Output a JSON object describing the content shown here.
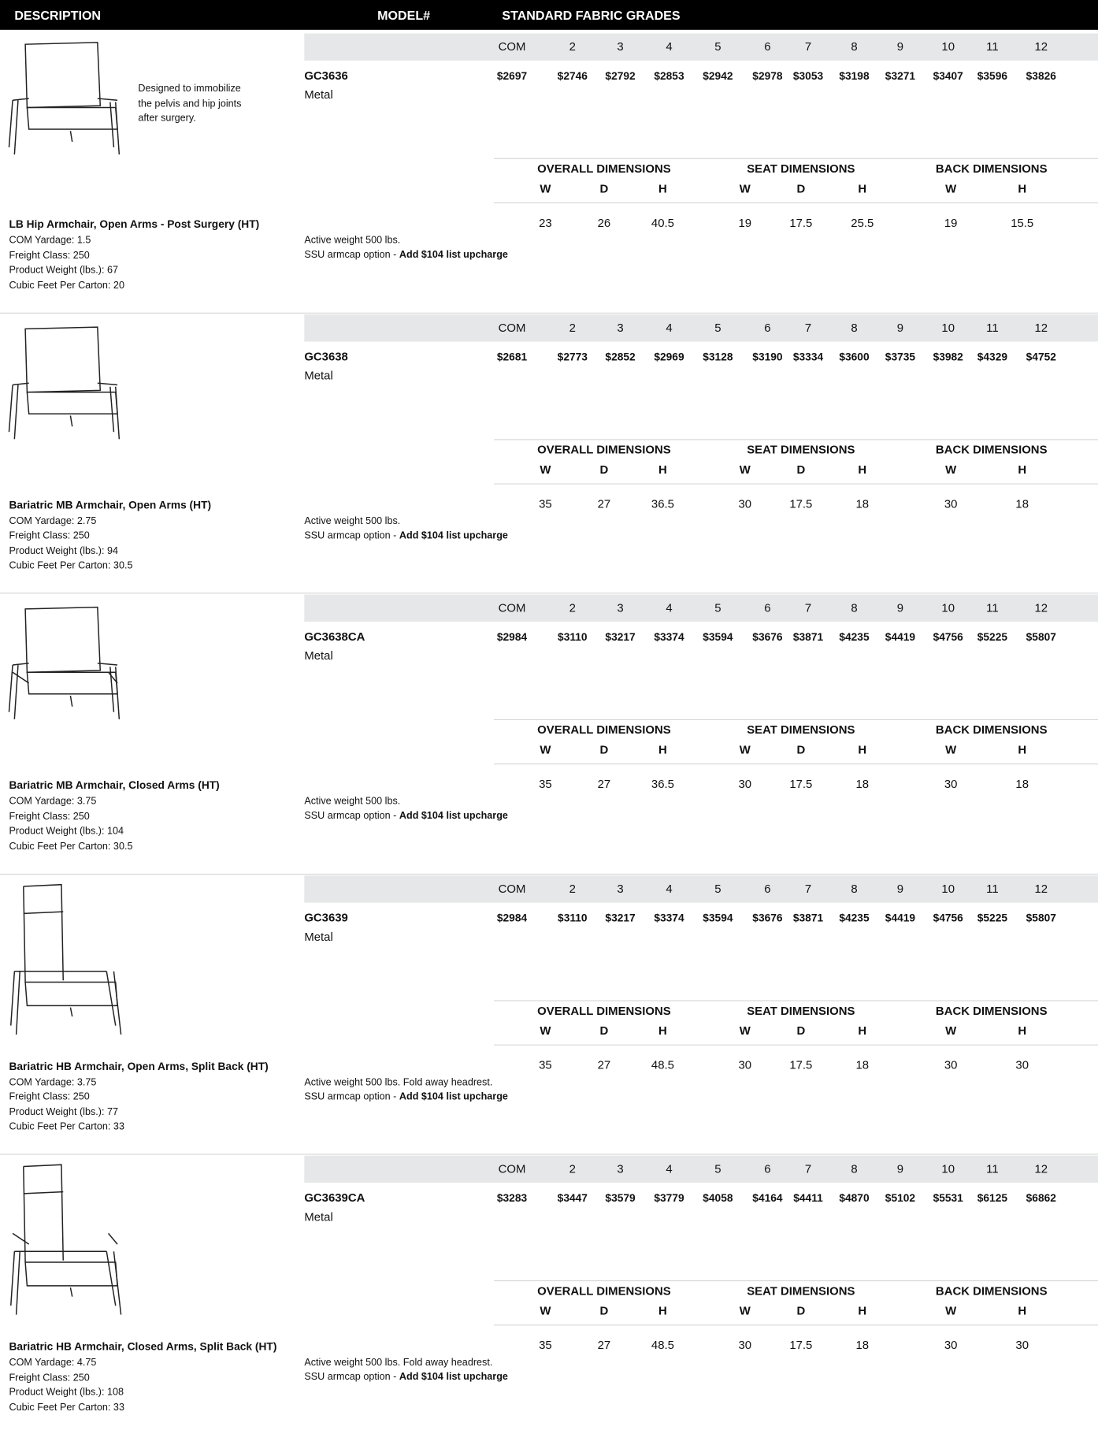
{
  "header": {
    "description": "DESCRIPTION",
    "model": "MODEL#",
    "grades": "STANDARD FABRIC GRADES"
  },
  "grade_labels": [
    "COM",
    "2",
    "3",
    "4",
    "5",
    "6",
    "7",
    "8",
    "9",
    "10",
    "11",
    "12"
  ],
  "dimension_groups": [
    "OVERALL DIMENSIONS",
    "SEAT DIMENSIONS",
    "BACK DIMENSIONS"
  ],
  "dimension_labels": [
    "W",
    "D",
    "H",
    "W",
    "D",
    "H",
    "W",
    "H"
  ],
  "products": [
    {
      "name": "LB Hip Armchair, Open Arms - Post Surgery (HT)",
      "description": [
        "Designed to immobilize",
        "the pelvis and hip joints",
        "after surgery."
      ],
      "specs": [
        "COM Yardage: 1.5",
        "Freight Class: 250",
        "Product Weight (lbs.): 67",
        "Cubic Feet Per Carton: 20"
      ],
      "model": "GC3636",
      "material": "Metal",
      "prices": [
        "$2697",
        "$2746",
        "$2792",
        "$2853",
        "$2942",
        "$2978",
        "$3053",
        "$3198",
        "$3271",
        "$3407",
        "$3596",
        "$3826"
      ],
      "dimensions": [
        23,
        26,
        40.5,
        19,
        17.5,
        25.5,
        19,
        15.5
      ],
      "note": "Active weight 500 lbs.",
      "option": "SSU armcap option - ",
      "option_bold": "Add $104 list upcharge"
    },
    {
      "name": "Bariatric MB Armchair, Open Arms (HT)",
      "specs": [
        "COM Yardage: 2.75",
        "Freight Class: 250",
        "Product Weight (lbs.): 94",
        "Cubic Feet Per Carton: 30.5"
      ],
      "model": "GC3638",
      "material": "Metal",
      "prices": [
        "$2681",
        "$2773",
        "$2852",
        "$2969",
        "$3128",
        "$3190",
        "$3334",
        "$3600",
        "$3735",
        "$3982",
        "$4329",
        "$4752"
      ],
      "dimensions": [
        35,
        27,
        36.5,
        30,
        17.5,
        18,
        30,
        18
      ],
      "note": "Active weight 500 lbs.",
      "option": "SSU armcap option - ",
      "option_bold": "Add $104 list upcharge"
    },
    {
      "name": "Bariatric MB Armchair, Closed Arms (HT)",
      "specs": [
        "COM Yardage: 3.75",
        "Freight Class: 250",
        "Product Weight (lbs.): 104",
        "Cubic Feet Per Carton: 30.5"
      ],
      "model": "GC3638CA",
      "material": "Metal",
      "prices": [
        "$2984",
        "$3110",
        "$3217",
        "$3374",
        "$3594",
        "$3676",
        "$3871",
        "$4235",
        "$4419",
        "$4756",
        "$5225",
        "$5807"
      ],
      "dimensions": [
        35,
        27,
        36.5,
        30,
        17.5,
        18,
        30,
        18
      ],
      "note": "Active weight 500 lbs.",
      "option": "SSU armcap option - ",
      "option_bold": "Add $104 list upcharge"
    },
    {
      "name": "Bariatric HB Armchair, Open Arms, Split Back (HT)",
      "specs": [
        "COM Yardage: 3.75",
        "Freight Class: 250",
        "Product Weight (lbs.): 77",
        "Cubic Feet Per Carton: 33"
      ],
      "model": "GC3639",
      "material": "Metal",
      "prices": [
        "$2984",
        "$3110",
        "$3217",
        "$3374",
        "$3594",
        "$3676",
        "$3871",
        "$4235",
        "$4419",
        "$4756",
        "$5225",
        "$5807"
      ],
      "dimensions": [
        35,
        27,
        48.5,
        30,
        17.5,
        18,
        30,
        30
      ],
      "note": "Active weight 500 lbs.  Fold away headrest.",
      "option": "SSU armcap option - ",
      "option_bold": "Add $104 list upcharge"
    },
    {
      "name": "Bariatric HB Armchair, Closed Arms, Split Back (HT)",
      "specs": [
        "COM Yardage: 4.75",
        "Freight Class: 250",
        "Product Weight (lbs.): 108",
        "Cubic Feet Per Carton: 33"
      ],
      "model": "GC3639CA",
      "material": "Metal",
      "prices": [
        "$3283",
        "$3447",
        "$3579",
        "$3779",
        "$4058",
        "$4164",
        "$4411",
        "$4870",
        "$5102",
        "$5531",
        "$6125",
        "$6862"
      ],
      "dimensions": [
        35,
        27,
        48.5,
        30,
        17.5,
        18,
        30,
        30
      ],
      "note": "Active weight 500 lbs.  Fold away headrest.",
      "option": "SSU armcap option - ",
      "option_bold": "Add $104 list upcharge"
    }
  ]
}
